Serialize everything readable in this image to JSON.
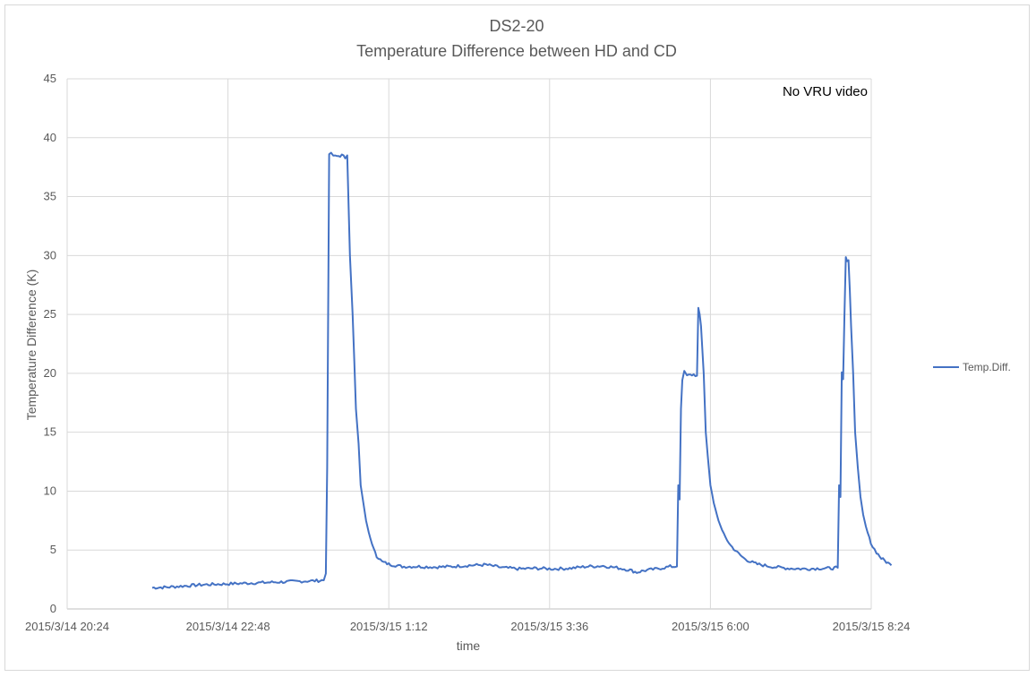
{
  "chart_data": {
    "type": "line",
    "title": "DS2-20",
    "subtitle": "Temperature Difference between HD and CD",
    "xlabel": "time",
    "ylabel": "Temperature Difference (K)",
    "ylim": [
      0,
      45
    ],
    "y_ticks": [
      0,
      5,
      10,
      15,
      20,
      25,
      30,
      35,
      40,
      45
    ],
    "x_tick_labels": [
      "2015/3/14 20:24",
      "2015/3/14 22:48",
      "2015/3/15 1:12",
      "2015/3/15 3:36",
      "2015/3/15 6:00",
      "2015/3/15 8:24"
    ],
    "x_axis_unit": "hours from 2015/3/14 20:24",
    "xlim": [
      0,
      12
    ],
    "grid": true,
    "legend_position": "right",
    "annotation": "No VRU video",
    "series": [
      {
        "name": "Temp.Diff.",
        "color": "#4472c4",
        "points": [
          [
            1.27,
            1.8
          ],
          [
            1.5,
            1.85
          ],
          [
            1.75,
            1.95
          ],
          [
            2.0,
            2.05
          ],
          [
            2.25,
            2.1
          ],
          [
            2.5,
            2.15
          ],
          [
            2.75,
            2.2
          ],
          [
            3.0,
            2.25
          ],
          [
            3.25,
            2.3
          ],
          [
            3.5,
            2.35
          ],
          [
            3.75,
            2.4
          ],
          [
            3.83,
            2.45
          ],
          [
            3.86,
            3.0
          ],
          [
            3.88,
            12.0
          ],
          [
            3.9,
            30.0
          ],
          [
            3.91,
            38.7
          ],
          [
            4.0,
            38.4
          ],
          [
            4.1,
            38.5
          ],
          [
            4.15,
            38.3
          ],
          [
            4.18,
            38.5
          ],
          [
            4.22,
            30.0
          ],
          [
            4.26,
            25.0
          ],
          [
            4.31,
            17.0
          ],
          [
            4.35,
            14.0
          ],
          [
            4.38,
            10.5
          ],
          [
            4.42,
            9.0
          ],
          [
            4.46,
            7.5
          ],
          [
            4.5,
            6.5
          ],
          [
            4.55,
            5.5
          ],
          [
            4.62,
            4.5
          ],
          [
            4.7,
            4.0
          ],
          [
            4.8,
            3.8
          ],
          [
            4.9,
            3.7
          ],
          [
            5.0,
            3.6
          ],
          [
            5.25,
            3.6
          ],
          [
            5.5,
            3.55
          ],
          [
            5.75,
            3.6
          ],
          [
            6.0,
            3.7
          ],
          [
            6.25,
            3.75
          ],
          [
            6.5,
            3.5
          ],
          [
            6.75,
            3.4
          ],
          [
            7.0,
            3.45
          ],
          [
            7.25,
            3.4
          ],
          [
            7.5,
            3.45
          ],
          [
            7.75,
            3.6
          ],
          [
            8.0,
            3.65
          ],
          [
            8.2,
            3.5
          ],
          [
            8.4,
            3.3
          ],
          [
            8.5,
            3.1
          ],
          [
            8.6,
            3.25
          ],
          [
            8.8,
            3.4
          ],
          [
            9.0,
            3.6
          ],
          [
            9.1,
            3.6
          ],
          [
            9.12,
            10.5
          ],
          [
            9.14,
            9.3
          ],
          [
            9.16,
            17.0
          ],
          [
            9.18,
            19.5
          ],
          [
            9.21,
            20.1
          ],
          [
            9.25,
            19.8
          ],
          [
            9.35,
            19.9
          ],
          [
            9.4,
            19.8
          ],
          [
            9.42,
            25.5
          ],
          [
            9.44,
            25.0
          ],
          [
            9.46,
            24.0
          ],
          [
            9.5,
            20.0
          ],
          [
            9.53,
            15.0
          ],
          [
            9.56,
            13.0
          ],
          [
            9.6,
            10.5
          ],
          [
            9.65,
            9.0
          ],
          [
            9.72,
            7.5
          ],
          [
            9.8,
            6.3
          ],
          [
            9.9,
            5.4
          ],
          [
            10.0,
            4.8
          ],
          [
            10.1,
            4.3
          ],
          [
            10.2,
            4.0
          ],
          [
            10.3,
            3.8
          ],
          [
            10.5,
            3.6
          ],
          [
            10.75,
            3.45
          ],
          [
            11.0,
            3.4
          ],
          [
            11.25,
            3.45
          ],
          [
            11.4,
            3.45
          ],
          [
            11.5,
            3.5
          ],
          [
            11.52,
            10.5
          ],
          [
            11.54,
            9.5
          ],
          [
            11.56,
            20.0
          ],
          [
            11.58,
            19.5
          ],
          [
            11.6,
            25.0
          ],
          [
            11.62,
            29.8
          ],
          [
            11.64,
            29.5
          ],
          [
            11.66,
            29.6
          ],
          [
            11.68,
            27.0
          ],
          [
            11.7,
            24.0
          ],
          [
            11.73,
            20.0
          ],
          [
            11.76,
            15.0
          ],
          [
            11.8,
            12.0
          ],
          [
            11.84,
            9.5
          ],
          [
            11.88,
            8.0
          ],
          [
            11.92,
            7.0
          ],
          [
            11.97,
            6.0
          ],
          [
            12.02,
            5.3
          ],
          [
            12.08,
            4.8
          ],
          [
            12.15,
            4.3
          ],
          [
            12.2,
            4.1
          ],
          [
            12.25,
            3.9
          ],
          [
            12.3,
            3.7
          ]
        ]
      }
    ]
  }
}
